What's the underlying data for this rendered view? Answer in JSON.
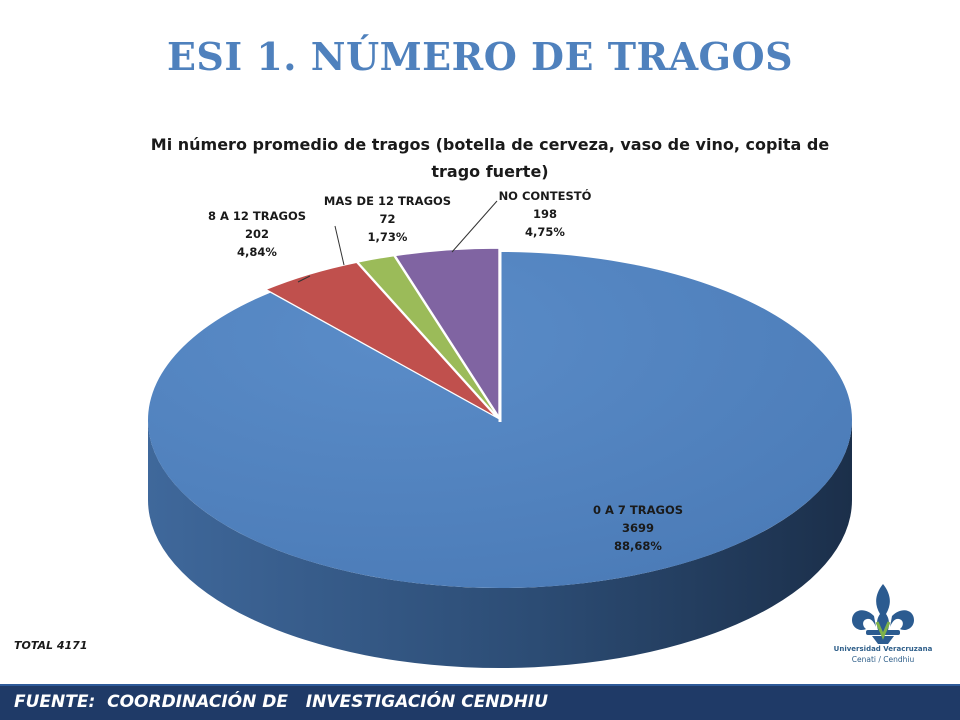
{
  "slide": {
    "title": "ESI  1. NÚMERO DE TRAGOS",
    "total": "TOTAL 4171",
    "footer": "FUENTE:  COORDINACIÓN DE   INVESTIGACIÓN CENDHIU",
    "logo": {
      "name": "Universidad Veracruzana",
      "subtitle": "Cenati / Cendhiu",
      "icon": "fleur-de-lis-logo"
    }
  },
  "chart_data": {
    "type": "pie",
    "style": "3d-exploded",
    "title": "Mi número promedio de tragos (botella de cerveza, vaso de vino, copita de trago fuerte)",
    "slices": [
      {
        "label": "0 A 7 TRAGOS",
        "value": 3699,
        "percent": "88,68%",
        "color": "#4f81bd"
      },
      {
        "label": "8 A 12 TRAGOS",
        "value": 202,
        "percent": "4,84%",
        "color": "#c0504d"
      },
      {
        "label": "MAS DE 12 TRAGOS",
        "value": 72,
        "percent": "1,73%",
        "color": "#9bbb59"
      },
      {
        "label": "NO CONTESTÓ",
        "value": 198,
        "percent": "4,75%",
        "color": "#8064a2"
      }
    ],
    "legend": "none",
    "data_labels": "outside"
  }
}
